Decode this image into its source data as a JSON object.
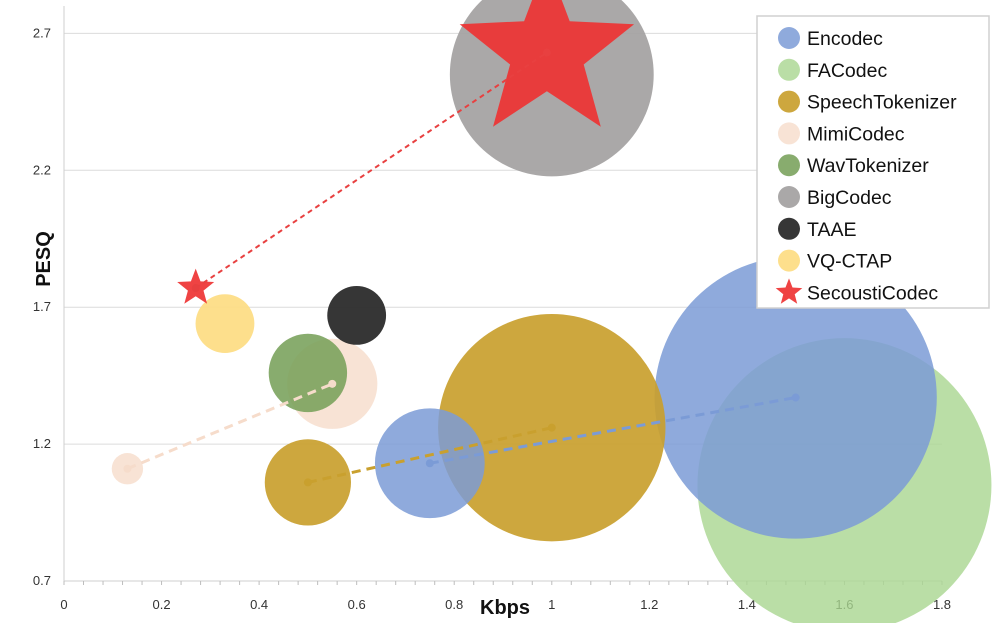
{
  "chart_data": {
    "type": "scatter",
    "xlabel": "Kbps",
    "ylabel": "PESQ",
    "xlim": [
      0,
      1.8
    ],
    "ylim": [
      0.7,
      2.8
    ],
    "xticks": [
      "0",
      "0.2",
      "0.4",
      "0.6",
      "0.8",
      "1",
      "1.2",
      "1.4",
      "1.6",
      "1.8"
    ],
    "yticks": [
      "0.7",
      "1.2",
      "1.7",
      "2.2",
      "2.7"
    ],
    "grid": "horizontal",
    "legend_position": "top-right",
    "series": [
      {
        "name": "Encodec",
        "color": "#7b9bd6",
        "opacity": 0.85,
        "marker": "circle",
        "line": true,
        "points": [
          {
            "x": 0.75,
            "y": 1.13,
            "size": 0.28
          },
          {
            "x": 1.5,
            "y": 1.37,
            "size": 0.72
          }
        ]
      },
      {
        "name": "FACodec",
        "color": "#a9d690",
        "opacity": 0.8,
        "marker": "circle",
        "line": false,
        "points": [
          {
            "x": 1.6,
            "y": 1.05,
            "size": 0.75
          }
        ]
      },
      {
        "name": "SpeechTokenizer",
        "color": "#c9a02e",
        "opacity": 0.92,
        "marker": "circle",
        "line": true,
        "points": [
          {
            "x": 0.5,
            "y": 1.06,
            "size": 0.22
          },
          {
            "x": 1.0,
            "y": 1.26,
            "size": 0.58
          }
        ]
      },
      {
        "name": "MimiCodec",
        "color": "#f6dccb",
        "opacity": 0.8,
        "marker": "circle",
        "line": true,
        "points": [
          {
            "x": 0.13,
            "y": 1.11,
            "size": 0.08
          },
          {
            "x": 0.55,
            "y": 1.42,
            "size": 0.23
          }
        ]
      },
      {
        "name": "WavTokenizer",
        "color": "#77a05a",
        "opacity": 0.88,
        "marker": "circle",
        "line": false,
        "points": [
          {
            "x": 0.5,
            "y": 1.46,
            "size": 0.2
          }
        ]
      },
      {
        "name": "BigCodec",
        "color": "#a19f9f",
        "opacity": 0.9,
        "marker": "circle",
        "line": false,
        "points": [
          {
            "x": 1.0,
            "y": 2.55,
            "size": 0.52
          }
        ]
      },
      {
        "name": "TAAE",
        "color": "#2b2b2b",
        "opacity": 0.95,
        "marker": "circle",
        "line": false,
        "points": [
          {
            "x": 0.6,
            "y": 1.67,
            "size": 0.15
          }
        ]
      },
      {
        "name": "VQ-CTAP",
        "color": "#fddc82",
        "opacity": 0.92,
        "marker": "circle",
        "line": false,
        "points": [
          {
            "x": 0.33,
            "y": 1.64,
            "size": 0.15
          }
        ]
      },
      {
        "name": "SecoustiCodec",
        "color": "#ee3333",
        "opacity": 0.92,
        "marker": "star",
        "line": true,
        "points": [
          {
            "x": 0.27,
            "y": 1.77,
            "size": 0.11
          },
          {
            "x": 0.99,
            "y": 2.63,
            "size": 0.52
          }
        ]
      }
    ]
  }
}
